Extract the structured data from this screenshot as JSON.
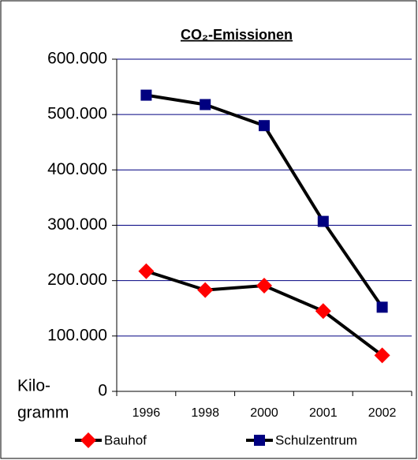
{
  "chart_data": {
    "type": "line",
    "title": "CO₂-Emissionen",
    "ylabel": [
      "Kilo-",
      "gramm"
    ],
    "categories": [
      "1996",
      "1998",
      "2000",
      "2001",
      "2002"
    ],
    "series": [
      {
        "name": "Bauhof",
        "color": "#ff0000",
        "marker": "diamond",
        "values": [
          217000,
          183000,
          191000,
          145000,
          65000
        ]
      },
      {
        "name": "Schulzentrum",
        "color": "#000080",
        "marker": "square",
        "values": [
          535000,
          518000,
          480000,
          307000,
          152000
        ]
      }
    ],
    "ylim": [
      0,
      600000
    ],
    "yticks": [
      0,
      {
        "value": 100000,
        "label": "100.000"
      },
      {
        "value": 200000,
        "label": "200.000"
      },
      {
        "value": 300000,
        "label": "300.000"
      },
      {
        "value": 400000,
        "label": "400.000"
      },
      {
        "value": 500000,
        "label": "500.000"
      },
      {
        "value": 600000,
        "label": "600.000"
      }
    ],
    "grid": true,
    "legend": "bottom"
  }
}
